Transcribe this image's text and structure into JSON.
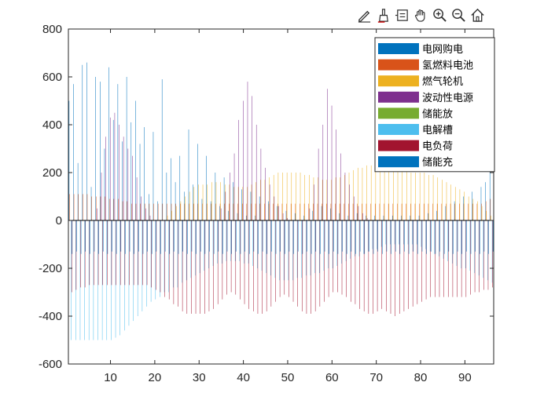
{
  "toolbar": {
    "icons": [
      "edit-icon",
      "brush-icon",
      "datatip-icon",
      "pan-icon",
      "zoom-in-icon",
      "zoom-out-icon",
      "home-icon"
    ]
  },
  "chart_data": {
    "type": "bar",
    "title": "",
    "xlabel": "",
    "ylabel": "",
    "xlim": [
      0.5,
      96.5
    ],
    "ylim": [
      -600,
      800
    ],
    "xticks": [
      10,
      20,
      30,
      40,
      50,
      60,
      70,
      80,
      90
    ],
    "yticks": [
      -600,
      -400,
      -200,
      0,
      200,
      400,
      600,
      800
    ],
    "grid": false,
    "legend_position": "top-right",
    "x": [
      1,
      2,
      3,
      4,
      5,
      6,
      7,
      8,
      9,
      10,
      11,
      12,
      13,
      14,
      15,
      16,
      17,
      18,
      19,
      20,
      21,
      22,
      23,
      24,
      25,
      26,
      27,
      28,
      29,
      30,
      31,
      32,
      33,
      34,
      35,
      36,
      37,
      38,
      39,
      40,
      41,
      42,
      43,
      44,
      45,
      46,
      47,
      48,
      49,
      50,
      51,
      52,
      53,
      54,
      55,
      56,
      57,
      58,
      59,
      60,
      61,
      62,
      63,
      64,
      65,
      66,
      67,
      68,
      69,
      70,
      71,
      72,
      73,
      74,
      75,
      76,
      77,
      78,
      79,
      80,
      81,
      82,
      83,
      84,
      85,
      86,
      87,
      88,
      89,
      90,
      91,
      92,
      93,
      94,
      95,
      96
    ],
    "series": [
      {
        "name": "电网购电",
        "color": "#0072BD",
        "values": [
          500,
          570,
          240,
          650,
          660,
          140,
          600,
          580,
          300,
          640,
          420,
          570,
          330,
          600,
          410,
          500,
          320,
          390,
          110,
          370,
          80,
          590,
          200,
          260,
          160,
          270,
          120,
          380,
          150,
          320,
          90,
          270,
          80,
          200,
          60,
          180,
          40,
          160,
          30,
          130,
          20,
          120,
          20,
          100,
          0,
          80,
          0,
          60,
          0,
          40,
          0,
          30,
          0,
          20,
          0,
          40,
          0,
          60,
          0,
          50,
          0,
          30,
          0,
          20,
          0,
          30,
          0,
          20,
          0,
          20,
          0,
          20,
          0,
          20,
          0,
          20,
          0,
          20,
          0,
          20,
          0,
          30,
          0,
          40,
          0,
          60,
          0,
          80,
          0,
          100,
          0,
          120,
          0,
          140,
          160,
          220
        ]
      },
      {
        "name": "氢燃料电池",
        "color": "#D95319",
        "values": [
          110,
          110,
          110,
          110,
          110,
          100,
          100,
          100,
          100,
          90,
          90,
          90,
          80,
          80,
          70,
          70,
          70,
          70,
          70,
          70,
          70,
          70,
          70,
          70,
          70,
          70,
          70,
          70,
          70,
          70,
          70,
          70,
          70,
          70,
          70,
          70,
          70,
          70,
          70,
          70,
          70,
          70,
          70,
          70,
          70,
          70,
          70,
          70,
          70,
          70,
          70,
          70,
          70,
          70,
          70,
          70,
          70,
          70,
          70,
          70,
          70,
          70,
          70,
          70,
          70,
          70,
          70,
          70,
          70,
          70,
          70,
          70,
          70,
          70,
          70,
          70,
          70,
          70,
          70,
          70,
          70,
          70,
          70,
          70,
          70,
          70,
          70,
          70,
          70,
          70,
          70,
          70,
          70,
          70,
          80,
          90
        ]
      },
      {
        "name": "燃气轮机",
        "color": "#EDB120",
        "values": [
          0,
          0,
          0,
          0,
          0,
          0,
          0,
          0,
          0,
          0,
          0,
          0,
          0,
          0,
          0,
          0,
          0,
          0,
          0,
          0,
          0,
          0,
          20,
          40,
          60,
          80,
          100,
          120,
          140,
          150,
          150,
          150,
          160,
          160,
          160,
          150,
          150,
          140,
          140,
          140,
          140,
          150,
          160,
          170,
          170,
          180,
          190,
          200,
          200,
          200,
          200,
          200,
          200,
          190,
          190,
          180,
          180,
          170,
          170,
          170,
          180,
          180,
          190,
          200,
          210,
          220,
          220,
          230,
          230,
          230,
          230,
          230,
          230,
          220,
          220,
          210,
          210,
          200,
          200,
          200,
          200,
          190,
          190,
          180,
          170,
          160,
          150,
          140,
          130,
          120,
          100,
          90,
          80,
          60,
          40,
          20
        ]
      },
      {
        "name": "波动性电源",
        "color": "#7E2F8E",
        "values": [
          0,
          0,
          0,
          0,
          0,
          0,
          50,
          200,
          350,
          430,
          450,
          400,
          350,
          300,
          270,
          180,
          100,
          50,
          20,
          0,
          0,
          0,
          0,
          0,
          0,
          0,
          0,
          0,
          0,
          0,
          0,
          0,
          0,
          0,
          50,
          120,
          200,
          280,
          420,
          500,
          580,
          520,
          400,
          300,
          220,
          150,
          100,
          60,
          30,
          10,
          0,
          0,
          0,
          0,
          50,
          150,
          300,
          400,
          550,
          480,
          380,
          280,
          200,
          150,
          100,
          60,
          30,
          10,
          0,
          0,
          0,
          0,
          0,
          0,
          0,
          0,
          0,
          0,
          0,
          0,
          0,
          0,
          0,
          0,
          0,
          0,
          0,
          0,
          0,
          0,
          0,
          0,
          0,
          0,
          0,
          0
        ]
      },
      {
        "name": "储能放",
        "color": "#77AC30",
        "values": [
          0,
          0,
          0,
          0,
          0,
          0,
          0,
          0,
          0,
          0,
          0,
          0,
          0,
          0,
          0,
          0,
          0,
          0,
          0,
          0,
          0,
          0,
          0,
          0,
          0,
          0,
          0,
          0,
          0,
          0,
          0,
          0,
          0,
          0,
          0,
          0,
          0,
          0,
          0,
          0,
          0,
          0,
          0,
          0,
          0,
          0,
          0,
          0,
          0,
          0,
          0,
          0,
          0,
          0,
          0,
          0,
          0,
          0,
          0,
          0,
          0,
          0,
          0,
          0,
          0,
          0,
          0,
          0,
          0,
          0,
          0,
          0,
          0,
          0,
          0,
          0,
          0,
          0,
          0,
          0,
          0,
          0,
          0,
          0,
          0,
          0,
          0,
          0,
          0,
          0,
          0,
          0,
          0,
          0,
          0,
          0
        ]
      },
      {
        "name": "电解槽",
        "color": "#4DBEEE",
        "values": [
          -500,
          -500,
          -500,
          -500,
          -500,
          -500,
          -500,
          -500,
          -500,
          -500,
          -490,
          -480,
          -460,
          -440,
          -420,
          -400,
          -380,
          -360,
          -340,
          -330,
          -320,
          -300,
          -300,
          -280,
          -280,
          -260,
          -250,
          -240,
          -230,
          -220,
          -210,
          -200,
          -190,
          -180,
          -180,
          -170,
          -170,
          -170,
          -170,
          -180,
          -180,
          -190,
          -200,
          -210,
          -220,
          -230,
          -240,
          -250,
          -250,
          -250,
          -250,
          -240,
          -240,
          -230,
          -230,
          -220,
          -220,
          -210,
          -200,
          -200,
          -190,
          -180,
          -170,
          -160,
          -150,
          -150,
          -140,
          -130,
          -120,
          -120,
          -110,
          -100,
          -100,
          -100,
          -100,
          -100,
          -100,
          -100,
          -100,
          -110,
          -120,
          -130,
          -140,
          -150,
          -160,
          -170,
          -180,
          -190,
          -200,
          -200,
          -210,
          -220,
          -230,
          -240,
          -250,
          -260
        ]
      },
      {
        "name": "电负荷",
        "color": "#A2142F",
        "values": [
          -300,
          -290,
          -280,
          -280,
          -270,
          -270,
          -270,
          -270,
          -270,
          -270,
          -270,
          -270,
          -270,
          -270,
          -270,
          -270,
          -270,
          -270,
          -280,
          -290,
          -300,
          -320,
          -330,
          -350,
          -360,
          -380,
          -390,
          -390,
          -390,
          -390,
          -390,
          -380,
          -370,
          -350,
          -330,
          -310,
          -300,
          -310,
          -330,
          -350,
          -370,
          -380,
          -390,
          -390,
          -380,
          -360,
          -340,
          -320,
          -310,
          -320,
          -340,
          -360,
          -380,
          -390,
          -390,
          -380,
          -360,
          -340,
          -320,
          -300,
          -300,
          -310,
          -320,
          -340,
          -350,
          -370,
          -380,
          -390,
          -390,
          -380,
          -370,
          -380,
          -390,
          -400,
          -390,
          -380,
          -370,
          -360,
          -350,
          -340,
          -330,
          -320,
          -320,
          -320,
          -320,
          -320,
          -320,
          -320,
          -320,
          -320,
          -310,
          -300,
          -300,
          -290,
          -290,
          -280
        ]
      },
      {
        "name": "储能充",
        "color": "#0072BD",
        "values": [
          -140,
          -130,
          -140,
          -130,
          -140,
          -130,
          -140,
          -130,
          -140,
          -130,
          -140,
          -130,
          -140,
          -130,
          -140,
          -130,
          -140,
          -130,
          -140,
          -130,
          -140,
          -130,
          -140,
          -130,
          -140,
          -130,
          -140,
          -130,
          -140,
          -130,
          -140,
          -130,
          -140,
          -130,
          -140,
          -130,
          -140,
          -130,
          -140,
          -130,
          -140,
          -130,
          -140,
          -130,
          -140,
          -130,
          -140,
          -130,
          -140,
          -130,
          -140,
          -130,
          -140,
          -130,
          -140,
          -130,
          -140,
          -130,
          -140,
          -130,
          -140,
          -130,
          -140,
          -130,
          -140,
          -130,
          -140,
          -130,
          -140,
          -130,
          -140,
          -130,
          -140,
          -130,
          -140,
          -130,
          -140,
          -130,
          -140,
          -130,
          -140,
          -130,
          -140,
          -130,
          -140,
          -130,
          -140,
          -130,
          -140,
          -130,
          -140,
          -130,
          -140,
          -130,
          -140,
          -130
        ]
      }
    ]
  }
}
